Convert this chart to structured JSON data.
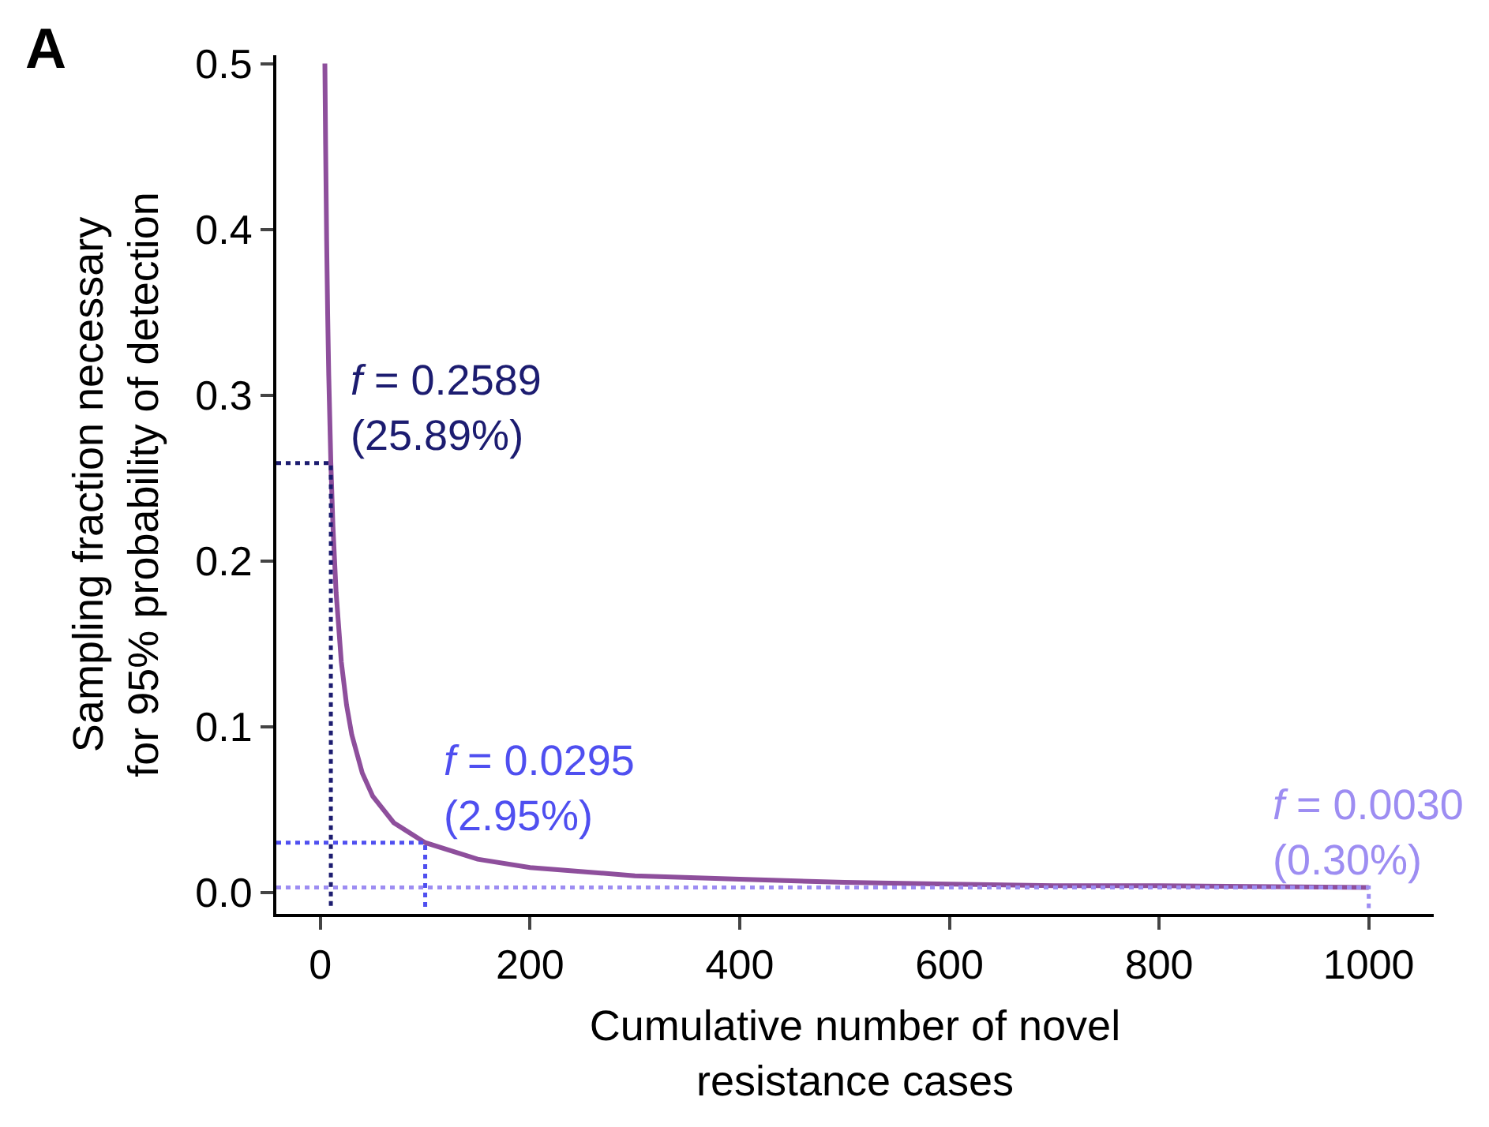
{
  "chart_data": {
    "type": "line",
    "xlabel": "Cumulative number of novel\nresistance cases",
    "ylabel": "Sampling fraction necessary\nfor 95% probability of detection",
    "xlim": [
      -42,
      1062
    ],
    "ylim": [
      -0.013,
      0.505
    ],
    "xticks": [
      0,
      200,
      400,
      600,
      800,
      1000
    ],
    "yticks": [
      {
        "value": 0,
        "label": "0.0"
      },
      0.1,
      0.2,
      0.3,
      0.4,
      0.5
    ],
    "legend": false,
    "marker": "none",
    "series": [
      {
        "color": "#8e4f9c",
        "line_style": "solid",
        "x": [
          4.32,
          5,
          6,
          7,
          8,
          10,
          12,
          15,
          20,
          25,
          30,
          40,
          50,
          70,
          100,
          150,
          200,
          300,
          400,
          500,
          600,
          700,
          800,
          1000
        ],
        "values": [
          0.5,
          0.451,
          0.393,
          0.348,
          0.312,
          0.259,
          0.221,
          0.181,
          0.139,
          0.113,
          0.095,
          0.072,
          0.058,
          0.042,
          0.03,
          0.02,
          0.015,
          0.01,
          0.008,
          0.006,
          0.005,
          0.004,
          0.004,
          0.003
        ]
      },
      {
        "color": "#1c1c70",
        "line_style": "dotted",
        "x": [
          -42,
          10,
          10
        ],
        "values": [
          0.259,
          0.259,
          -0.01
        ]
      },
      {
        "color": "#4f4ff0",
        "line_style": "dotted",
        "x": [
          -42,
          100,
          100
        ],
        "values": [
          0.03,
          0.03,
          -0.01
        ]
      },
      {
        "color": "#9d8df2",
        "line_style": "dotted",
        "x": [
          -42,
          1000,
          1000
        ],
        "values": [
          0.003,
          0.003,
          -0.01
        ]
      }
    ],
    "annotations": [
      {
        "text": "f = 0.2589\n(25.89%)",
        "x": 10,
        "y": 0.2589
      },
      {
        "text": "f = 0.0295\n(2.95%)",
        "x": 100,
        "y": 0.0295
      },
      {
        "text": "f = 0.0030\n(0.30%)",
        "x": 1000,
        "y": 0.003
      },
      "A"
    ]
  }
}
